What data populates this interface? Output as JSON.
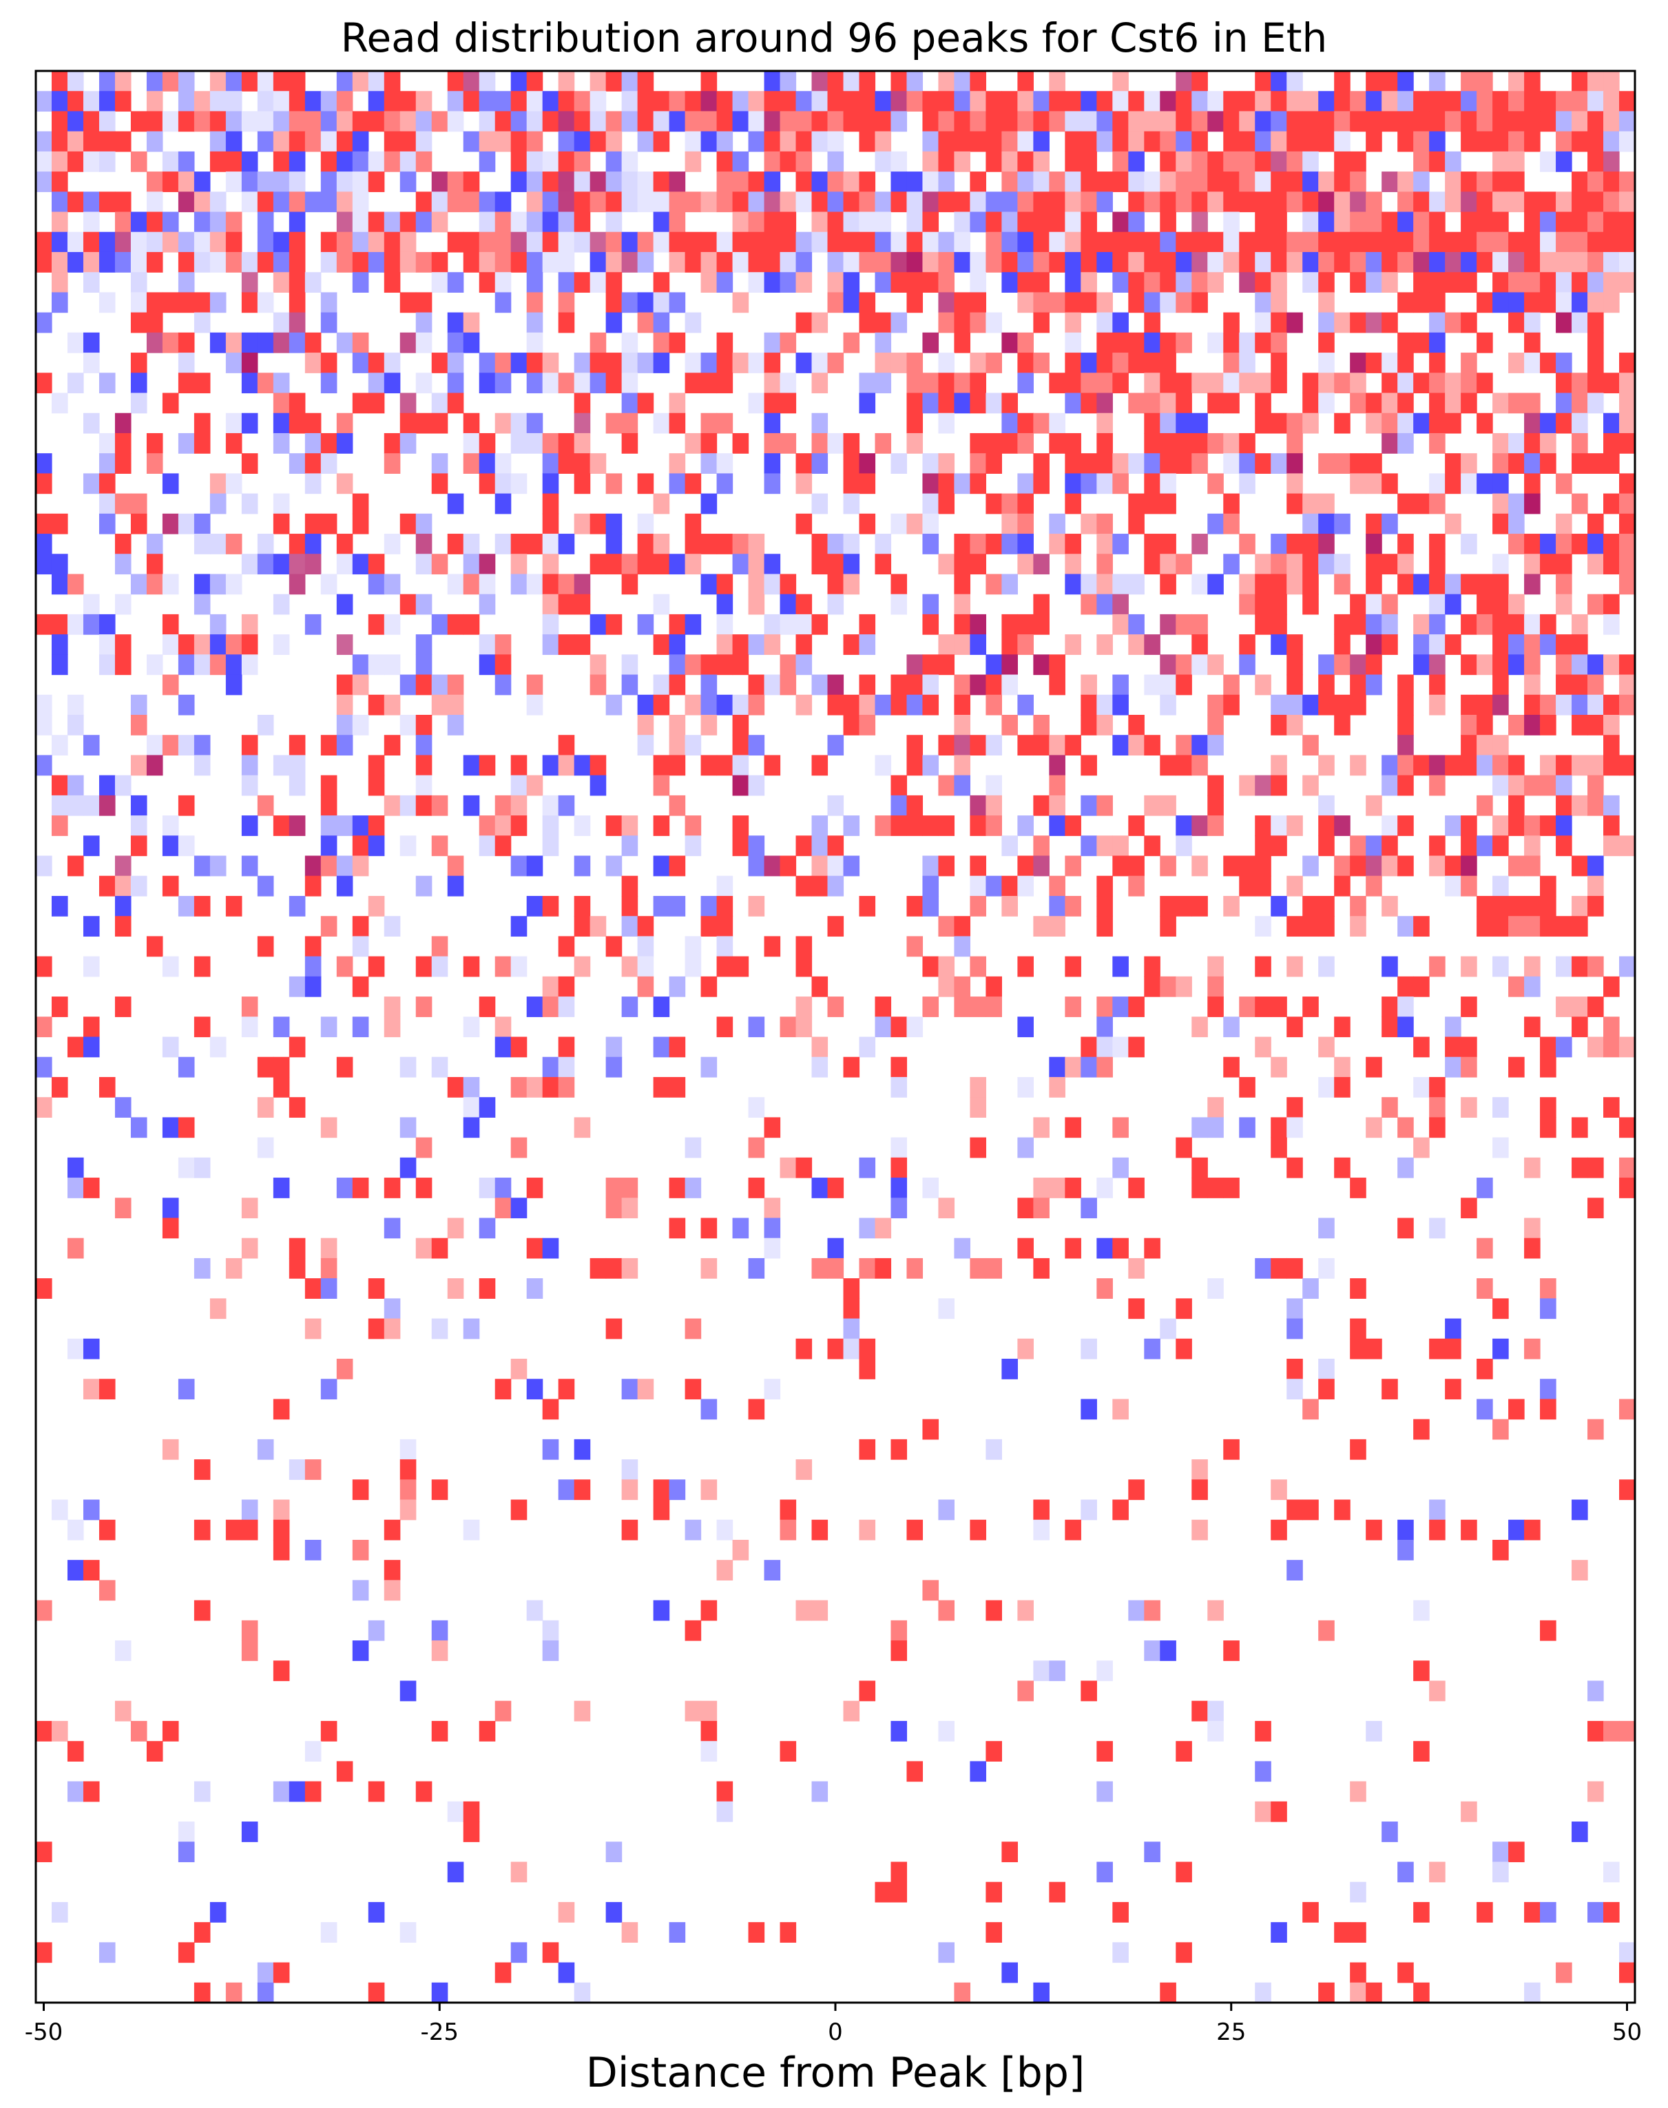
{
  "chart_data": {
    "type": "heatmap",
    "title": "Read distribution around 96 peaks for Cst6 in Eth",
    "xlabel": "Distance from Peak [bp]",
    "ylabel": "",
    "xlim": [
      -50,
      50
    ],
    "x_ticks": [
      -50,
      -25,
      0,
      25,
      50
    ],
    "x_tick_labels": [
      "-50",
      "-25",
      "0",
      "25",
      "50"
    ],
    "n_peaks": 96,
    "rows": 96,
    "columns": 101,
    "y_ticks_visible": false,
    "grid": false,
    "legend": "none",
    "colormap": {
      "positive_strand": "#ff0000",
      "negative_strand": "#0000ff",
      "both_strands": "#aa0055",
      "background": "#ffffff"
    },
    "strand_bands": {
      "description": "approximate fraction of positions with reads, by row band (rows sorted top to bottom)",
      "row_bands": [
        {
          "rows": [
            0,
            9
          ],
          "left_density": 0.75,
          "right_density": 0.85,
          "left_red_share": 0.45,
          "right_red_share": 0.85
        },
        {
          "rows": [
            10,
            19
          ],
          "left_density": 0.45,
          "right_density": 0.7,
          "left_red_share": 0.35,
          "right_red_share": 0.8
        },
        {
          "rows": [
            20,
            29
          ],
          "left_density": 0.4,
          "right_density": 0.6,
          "left_red_share": 0.35,
          "right_red_share": 0.85
        },
        {
          "rows": [
            30,
            39
          ],
          "left_density": 0.35,
          "right_density": 0.5,
          "left_red_share": 0.4,
          "right_red_share": 0.85
        },
        {
          "rows": [
            40,
            49
          ],
          "left_density": 0.25,
          "right_density": 0.35,
          "left_red_share": 0.5,
          "right_red_share": 0.85
        },
        {
          "rows": [
            50,
            59
          ],
          "left_density": 0.15,
          "right_density": 0.2,
          "left_red_share": 0.5,
          "right_red_share": 0.8
        },
        {
          "rows": [
            60,
            72
          ],
          "left_density": 0.12,
          "right_density": 0.12,
          "left_red_share": 0.55,
          "right_red_share": 0.7
        },
        {
          "rows": [
            73,
            95
          ],
          "left_density": 0.08,
          "right_density": 0.09,
          "left_red_share": 0.6,
          "right_red_share": 0.65
        }
      ]
    }
  }
}
